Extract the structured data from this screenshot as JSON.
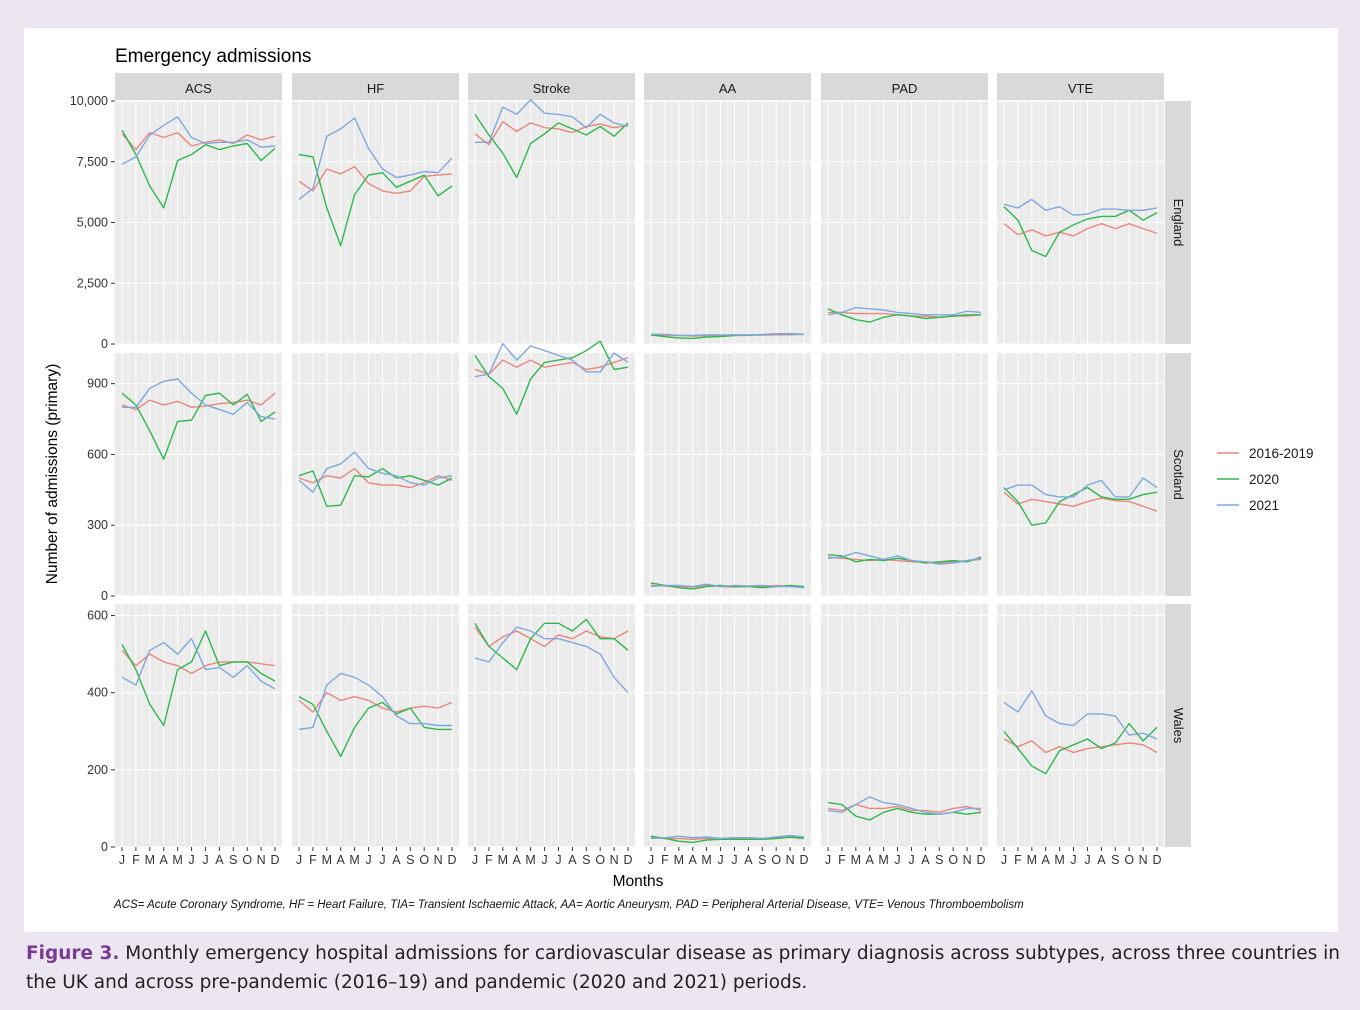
{
  "chart_data": {
    "type": "line",
    "title": "Emergency admissions",
    "xlabel": "Months",
    "ylabel": "Number of admissions (primary)",
    "x": [
      "J",
      "F",
      "M",
      "A",
      "M",
      "J",
      "J",
      "A",
      "S",
      "O",
      "N",
      "D"
    ],
    "columns": [
      "ACS",
      "HF",
      "Stroke",
      "AA",
      "PAD",
      "VTE"
    ],
    "rows": [
      {
        "name": "England",
        "ylim": [
          0,
          10000
        ],
        "ticks": [
          0,
          2500,
          5000,
          7500,
          10000
        ],
        "tick_labels": [
          "0",
          "2,500",
          "5,000",
          "7,500",
          "10,000"
        ]
      },
      {
        "name": "Scotland",
        "ylim": [
          0,
          1030
        ],
        "ticks": [
          0,
          300,
          600,
          900
        ],
        "tick_labels": [
          "0",
          "300",
          "600",
          "900"
        ]
      },
      {
        "name": "Wales",
        "ylim": [
          0,
          630
        ],
        "ticks": [
          0,
          200,
          400,
          600
        ],
        "tick_labels": [
          "0",
          "200",
          "400",
          "600"
        ]
      }
    ],
    "series_names": [
      "2016-2019",
      "2020",
      "2021"
    ],
    "series_colors": [
      "#e8877c",
      "#2eb84b",
      "#7fa8df"
    ],
    "legend_position": "right",
    "grid": true,
    "panels": {
      "England": {
        "ACS": {
          "2016-2019": [
            8650,
            8000,
            8700,
            8500,
            8700,
            8150,
            8300,
            8400,
            8250,
            8600,
            8400,
            8550
          ],
          "2020": [
            8800,
            7800,
            6500,
            5600,
            7550,
            7800,
            8200,
            8000,
            8150,
            8250,
            7550,
            8050
          ],
          "2021": [
            7400,
            7700,
            8600,
            9000,
            9350,
            8500,
            8250,
            8300,
            8300,
            8400,
            8100,
            8150
          ]
        },
        "HF": {
          "2016-2019": [
            6700,
            6300,
            7200,
            7000,
            7300,
            6600,
            6300,
            6200,
            6300,
            6900,
            6950,
            7000
          ],
          "2020": [
            7800,
            7700,
            5600,
            4050,
            6150,
            6950,
            7050,
            6450,
            6700,
            6950,
            6100,
            6500
          ],
          "2021": [
            5950,
            6400,
            8550,
            8850,
            9300,
            8050,
            7200,
            6850,
            6950,
            7100,
            7050,
            7650
          ]
        },
        "Stroke": {
          "2016-2019": [
            8650,
            8200,
            9150,
            8750,
            9100,
            8900,
            8850,
            8700,
            8950,
            9050,
            8900,
            9000
          ],
          "2020": [
            9450,
            8600,
            7850,
            6850,
            8250,
            8650,
            9100,
            8850,
            8600,
            8950,
            8550,
            9100
          ],
          "2021": [
            8300,
            8300,
            9750,
            9450,
            10050,
            9500,
            9450,
            9350,
            8900,
            9450,
            9100,
            8950
          ]
        },
        "AA": {
          "2016-2019": [
            360,
            350,
            360,
            330,
            350,
            360,
            370,
            380,
            370,
            380,
            380,
            400
          ],
          "2020": [
            380,
            300,
            250,
            230,
            290,
            310,
            350,
            360,
            380,
            420,
            430,
            400
          ],
          "2021": [
            400,
            400,
            350,
            350,
            380,
            370,
            380,
            370,
            390,
            420,
            410,
            390
          ]
        },
        "PAD": {
          "2016-2019": [
            1300,
            1300,
            1250,
            1250,
            1250,
            1200,
            1150,
            1150,
            1100,
            1150,
            1150,
            1200
          ],
          "2020": [
            1450,
            1200,
            1000,
            900,
            1100,
            1200,
            1150,
            1050,
            1100,
            1150,
            1200,
            1200
          ],
          "2021": [
            1200,
            1300,
            1500,
            1450,
            1400,
            1300,
            1250,
            1200,
            1200,
            1200,
            1350,
            1300
          ]
        },
        "VTE": {
          "2016-2019": [
            4950,
            4500,
            4700,
            4450,
            4600,
            4450,
            4750,
            4950,
            4750,
            4950,
            4750,
            4550
          ],
          "2020": [
            5650,
            5100,
            3850,
            3600,
            4600,
            4900,
            5150,
            5250,
            5250,
            5500,
            5100,
            5400
          ],
          "2021": [
            5750,
            5600,
            5950,
            5500,
            5650,
            5300,
            5350,
            5550,
            5550,
            5500,
            5500,
            5600
          ]
        }
      },
      "Scotland": {
        "ACS": {
          "2016-2019": [
            810,
            790,
            830,
            810,
            825,
            800,
            805,
            815,
            820,
            830,
            810,
            860
          ],
          "2020": [
            860,
            810,
            700,
            580,
            740,
            745,
            850,
            860,
            810,
            855,
            740,
            780
          ],
          "2021": [
            800,
            800,
            880,
            910,
            920,
            860,
            810,
            790,
            770,
            820,
            760,
            750
          ]
        },
        "HF": {
          "2016-2019": [
            500,
            480,
            510,
            500,
            540,
            480,
            470,
            470,
            460,
            480,
            510,
            490
          ],
          "2020": [
            510,
            530,
            380,
            385,
            510,
            505,
            540,
            500,
            510,
            490,
            470,
            500
          ],
          "2021": [
            490,
            440,
            540,
            560,
            610,
            540,
            520,
            510,
            480,
            470,
            500,
            510
          ]
        },
        "Stroke": {
          "2016-2019": [
            960,
            940,
            1000,
            970,
            1000,
            970,
            980,
            990,
            960,
            970,
            990,
            1010
          ],
          "2020": [
            1020,
            930,
            880,
            770,
            920,
            990,
            1000,
            1010,
            1040,
            1080,
            960,
            970
          ],
          "2021": [
            930,
            940,
            1070,
            1000,
            1060,
            1040,
            1020,
            1000,
            950,
            950,
            1030,
            990
          ]
        },
        "AA": {
          "2016-2019": [
            45,
            42,
            40,
            38,
            45,
            40,
            38,
            42,
            40,
            45,
            40,
            38
          ],
          "2020": [
            55,
            45,
            35,
            30,
            40,
            45,
            40,
            40,
            35,
            40,
            45,
            40
          ],
          "2021": [
            40,
            45,
            45,
            40,
            50,
            40,
            45,
            42,
            45,
            40,
            40,
            35
          ]
        },
        "PAD": {
          "2016-2019": [
            165,
            160,
            155,
            150,
            155,
            150,
            145,
            145,
            140,
            145,
            150,
            155
          ],
          "2020": [
            175,
            170,
            145,
            155,
            150,
            160,
            150,
            140,
            145,
            150,
            145,
            165
          ],
          "2021": [
            160,
            165,
            185,
            170,
            155,
            170,
            150,
            145,
            135,
            140,
            150,
            160
          ]
        },
        "VTE": {
          "2016-2019": [
            440,
            390,
            410,
            400,
            390,
            380,
            400,
            415,
            405,
            400,
            380,
            360
          ],
          "2020": [
            460,
            400,
            300,
            310,
            400,
            430,
            460,
            420,
            410,
            410,
            430,
            440
          ],
          "2021": [
            450,
            470,
            470,
            430,
            420,
            420,
            470,
            490,
            420,
            420,
            500,
            460
          ]
        }
      },
      "Wales": {
        "ACS": {
          "2016-2019": [
            510,
            470,
            500,
            480,
            470,
            450,
            470,
            480,
            480,
            480,
            475,
            470
          ],
          "2020": [
            525,
            460,
            370,
            315,
            460,
            480,
            560,
            470,
            480,
            480,
            450,
            430
          ],
          "2021": [
            440,
            420,
            510,
            530,
            500,
            540,
            460,
            465,
            440,
            470,
            430,
            410
          ]
        },
        "HF": {
          "2016-2019": [
            380,
            350,
            400,
            380,
            390,
            380,
            360,
            350,
            360,
            365,
            360,
            375
          ],
          "2020": [
            390,
            370,
            300,
            235,
            310,
            360,
            375,
            345,
            360,
            310,
            305,
            305
          ],
          "2021": [
            305,
            310,
            420,
            450,
            440,
            420,
            390,
            340,
            320,
            320,
            315,
            315
          ]
        },
        "Stroke": {
          "2016-2019": [
            570,
            520,
            545,
            560,
            540,
            520,
            550,
            540,
            560,
            545,
            540,
            560
          ],
          "2020": [
            580,
            520,
            490,
            460,
            540,
            580,
            580,
            560,
            590,
            540,
            540,
            510
          ],
          "2021": [
            490,
            480,
            530,
            570,
            560,
            540,
            540,
            530,
            520,
            500,
            440,
            400
          ]
        },
        "AA": {
          "2016-2019": [
            25,
            22,
            22,
            20,
            22,
            20,
            22,
            24,
            22,
            24,
            25,
            24
          ],
          "2020": [
            28,
            22,
            15,
            12,
            18,
            20,
            20,
            20,
            20,
            22,
            26,
            22
          ],
          "2021": [
            22,
            24,
            28,
            24,
            26,
            22,
            24,
            24,
            22,
            26,
            30,
            26
          ]
        },
        "PAD": {
          "2016-2019": [
            100,
            95,
            110,
            100,
            100,
            105,
            95,
            95,
            90,
            100,
            105,
            95
          ],
          "2020": [
            115,
            110,
            80,
            70,
            90,
            100,
            90,
            85,
            85,
            90,
            85,
            90
          ],
          "2021": [
            95,
            90,
            110,
            130,
            115,
            110,
            100,
            90,
            85,
            90,
            100,
            100
          ]
        },
        "VTE": {
          "2016-2019": [
            280,
            260,
            275,
            245,
            260,
            245,
            255,
            260,
            265,
            270,
            265,
            245
          ],
          "2020": [
            300,
            255,
            210,
            190,
            250,
            265,
            280,
            255,
            270,
            320,
            275,
            310
          ],
          "2021": [
            375,
            350,
            405,
            340,
            320,
            315,
            345,
            345,
            340,
            290,
            295,
            280
          ]
        }
      }
    }
  },
  "footnote": "ACS= Acute Coronary Syndrome, HF = Heart Failure, TIA= Transient Ischaemic Attack, AA= Aortic Aneurysm, PAD = Peripheral Arterial Disease, VTE= Venous Thromboembolism",
  "caption": {
    "label": "Figure 3.",
    "text": "Monthly emergency hospital admissions for cardiovascular disease as primary diagnosis across subtypes, across three countries in the UK and across pre-pandemic (2016–19) and pandemic (2020 and 2021) periods."
  },
  "colors": {
    "page_background": "#ece6f1",
    "panel_background": "#ebebeb",
    "strip_background": "#d9d9d9",
    "caption_label": "#7a3b94"
  }
}
